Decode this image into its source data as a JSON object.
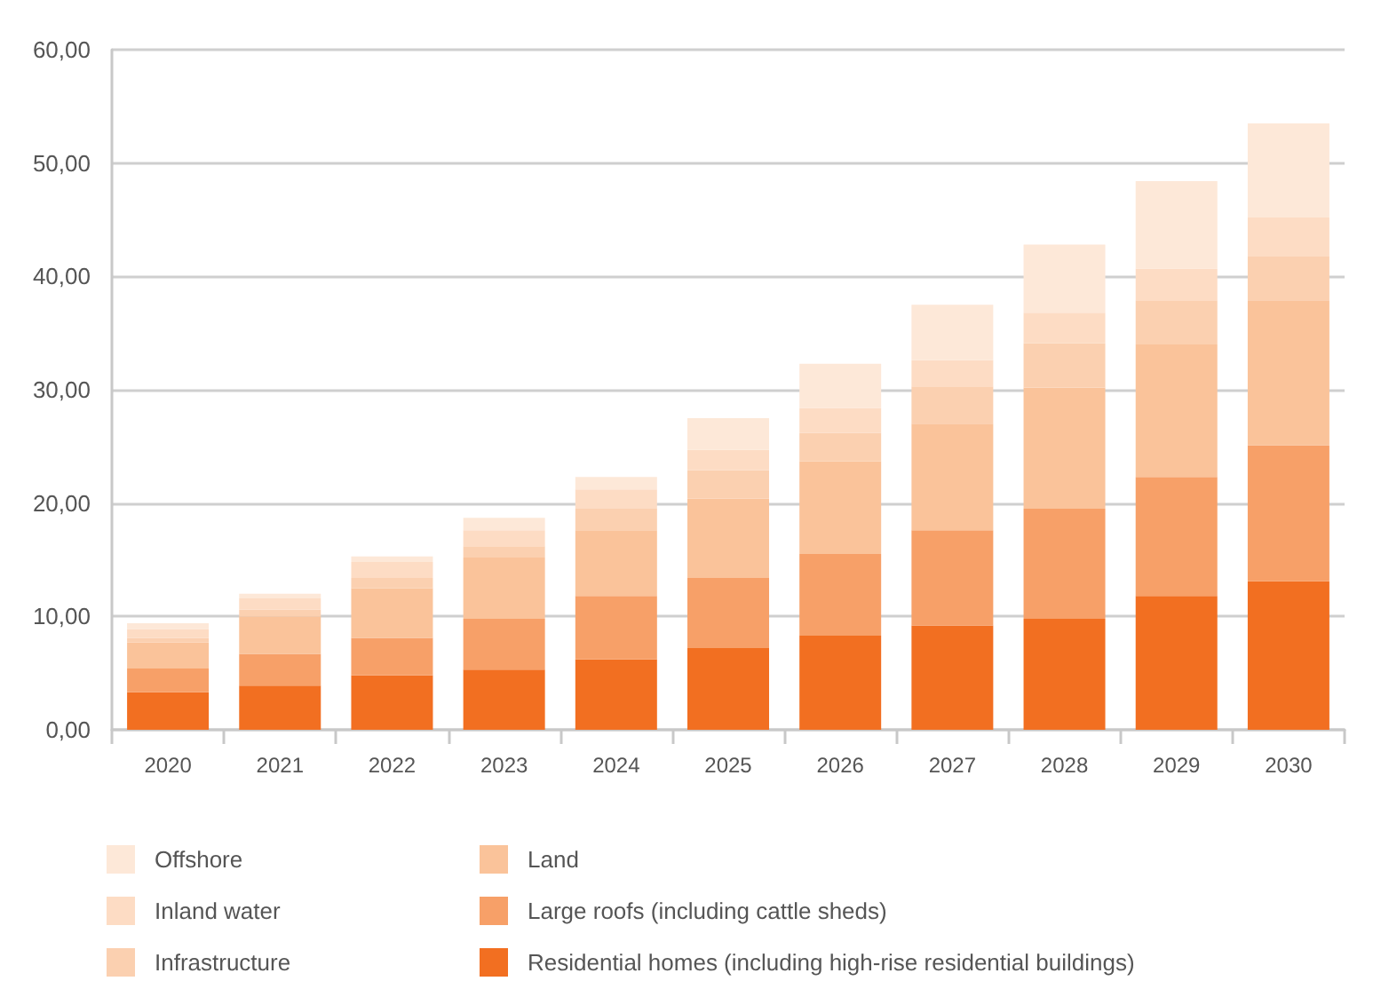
{
  "chart_data": {
    "type": "bar",
    "stacked": true,
    "categories": [
      "2020",
      "2021",
      "2022",
      "2023",
      "2024",
      "2025",
      "2026",
      "2027",
      "2028",
      "2029",
      "2030"
    ],
    "series": [
      {
        "name": "Residential homes (including high-rise residential buildings)",
        "color": "#f26f21",
        "values": [
          3.3,
          3.9,
          4.8,
          5.3,
          6.2,
          7.2,
          8.3,
          9.2,
          9.8,
          11.8,
          13.1
        ]
      },
      {
        "name": "Large roofs (including cattle sheds)",
        "color": "#f7a068",
        "values": [
          2.1,
          2.8,
          3.3,
          4.5,
          5.6,
          6.2,
          7.2,
          8.4,
          9.7,
          10.5,
          12.0
        ]
      },
      {
        "name": "Land",
        "color": "#fac39a",
        "values": [
          2.3,
          3.3,
          4.4,
          5.4,
          5.8,
          7.0,
          8.2,
          9.4,
          10.7,
          11.7,
          12.8
        ]
      },
      {
        "name": "Infrastructure",
        "color": "#fbd0b0",
        "values": [
          0.4,
          0.6,
          0.9,
          1.0,
          1.9,
          2.5,
          2.5,
          3.3,
          3.9,
          3.9,
          3.9
        ]
      },
      {
        "name": "Inland water",
        "color": "#fddcc4",
        "values": [
          0.8,
          1.0,
          1.4,
          1.4,
          1.7,
          1.8,
          2.2,
          2.3,
          2.7,
          2.8,
          3.4
        ]
      },
      {
        "name": "Offshore",
        "color": "#fde8d8",
        "values": [
          0.5,
          0.4,
          0.5,
          1.1,
          1.1,
          2.8,
          3.9,
          4.9,
          6.0,
          7.7,
          8.3
        ]
      }
    ],
    "ylim": [
      0,
      60
    ],
    "yticks": [
      {
        "value": 0,
        "label": "0,00"
      },
      {
        "value": 10,
        "label": "10,00"
      },
      {
        "value": 20,
        "label": "20,00"
      },
      {
        "value": 30,
        "label": "30,00"
      },
      {
        "value": 40,
        "label": "40,00"
      },
      {
        "value": 50,
        "label": "50,00"
      },
      {
        "value": 60,
        "label": "60,00"
      }
    ],
    "grid": "y",
    "legend": "bottom"
  }
}
